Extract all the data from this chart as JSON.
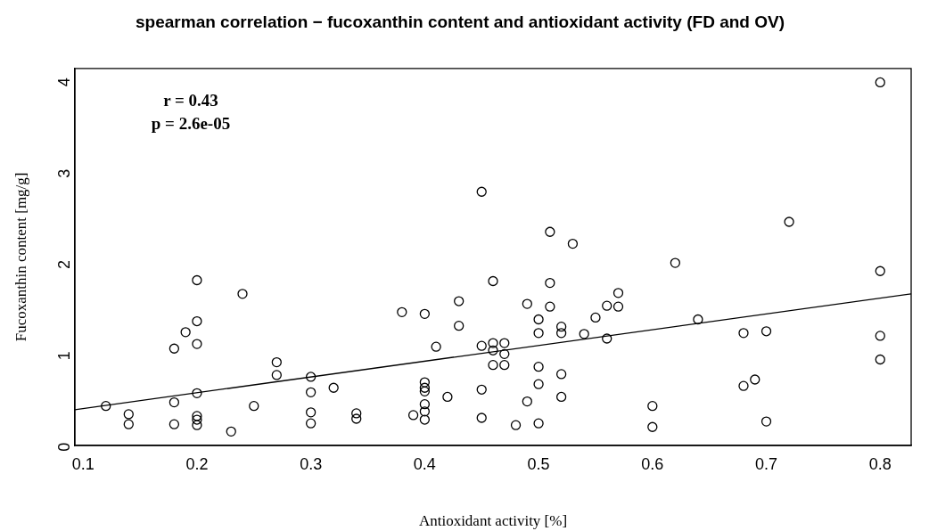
{
  "chart_data": {
    "type": "scatter",
    "title": "spearman correlation − fucoxanthin content and antioxidant activity (FD and OV)",
    "xlabel": "Antioxidant activity [%]",
    "ylabel": "Fucoxanthin content [mg/g]",
    "annotations": [
      "r = 0.43",
      "p = 2.6e-05"
    ],
    "xlim": [
      0.0928,
      0.8272
    ],
    "ylim": [
      -0.033,
      4.103
    ],
    "xticks": [
      0.1,
      0.2,
      0.3,
      0.4,
      0.5,
      0.6,
      0.7,
      0.8
    ],
    "yticks": [
      0,
      1,
      2,
      3,
      4
    ],
    "grid": false,
    "legend": false,
    "marker": "circle",
    "series": [
      {
        "color": "#000000",
        "x": [
          0.12,
          0.14,
          0.14,
          0.18,
          0.18,
          0.18,
          0.19,
          0.2,
          0.2,
          0.2,
          0.2,
          0.2,
          0.2,
          0.2,
          0.23,
          0.24,
          0.25,
          0.27,
          0.27,
          0.3,
          0.3,
          0.3,
          0.3,
          0.32,
          0.34,
          0.34,
          0.38,
          0.39,
          0.4,
          0.4,
          0.4,
          0.4,
          0.4,
          0.4,
          0.4,
          0.41,
          0.42,
          0.43,
          0.43,
          0.45,
          0.45,
          0.45,
          0.45,
          0.46,
          0.46,
          0.46,
          0.46,
          0.47,
          0.47,
          0.47,
          0.48,
          0.49,
          0.49,
          0.5,
          0.5,
          0.5,
          0.5,
          0.5,
          0.51,
          0.51,
          0.51,
          0.52,
          0.52,
          0.52,
          0.52,
          0.53,
          0.54,
          0.55,
          0.56,
          0.56,
          0.57,
          0.57,
          0.6,
          0.6,
          0.62,
          0.64,
          0.68,
          0.68,
          0.69,
          0.7,
          0.7,
          0.72,
          0.8,
          0.8,
          0.8,
          0.8
        ],
        "values": [
          0.4,
          0.31,
          0.2,
          1.03,
          0.44,
          0.2,
          1.21,
          1.78,
          1.33,
          1.08,
          0.54,
          0.29,
          0.25,
          0.19,
          0.12,
          1.63,
          0.4,
          0.88,
          0.74,
          0.72,
          0.55,
          0.33,
          0.21,
          0.6,
          0.32,
          0.26,
          1.43,
          0.3,
          1.41,
          0.66,
          0.6,
          0.56,
          0.42,
          0.34,
          0.25,
          1.05,
          0.5,
          1.55,
          1.28,
          2.75,
          1.06,
          0.58,
          0.27,
          1.77,
          1.09,
          1.01,
          0.85,
          1.09,
          0.97,
          0.85,
          0.19,
          1.52,
          0.45,
          1.35,
          1.2,
          0.83,
          0.64,
          0.21,
          2.31,
          1.75,
          1.49,
          1.27,
          1.2,
          0.75,
          0.5,
          2.18,
          1.19,
          1.37,
          1.5,
          1.14,
          1.64,
          1.49,
          0.4,
          0.17,
          1.97,
          1.35,
          1.2,
          0.62,
          0.69,
          1.22,
          0.23,
          2.42,
          3.95,
          1.88,
          1.17,
          0.91
        ]
      },
      {
        "type": "line",
        "color": "#000000",
        "marker": "none",
        "line_style": "solid",
        "x": [
          0.0928,
          0.8272
        ],
        "values": [
          0.36,
          1.63
        ]
      }
    ]
  }
}
